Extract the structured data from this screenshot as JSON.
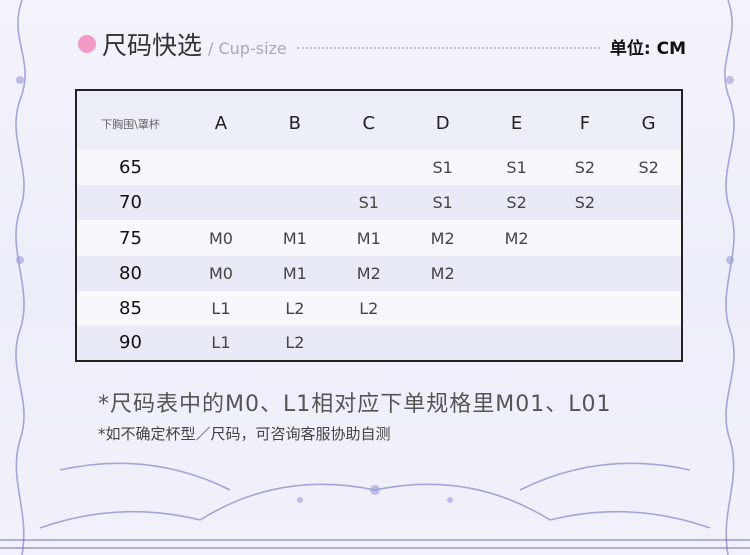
{
  "header": {
    "title": "尺码快选",
    "subtitle": "/ Cup-size",
    "unit": "单位: CM",
    "accent": "#f49ac6"
  },
  "table": {
    "corner": "下胸围\\罩杯",
    "columns": [
      "A",
      "B",
      "C",
      "D",
      "E",
      "F",
      "G"
    ],
    "rows": [
      {
        "band": "65",
        "cells": [
          "",
          "",
          "",
          "S1",
          "S1",
          "S2",
          "S2"
        ]
      },
      {
        "band": "70",
        "cells": [
          "",
          "",
          "S1",
          "S1",
          "S2",
          "S2",
          ""
        ]
      },
      {
        "band": "75",
        "cells": [
          "M0",
          "M1",
          "M1",
          "M2",
          "M2",
          "",
          ""
        ]
      },
      {
        "band": "80",
        "cells": [
          "M0",
          "M1",
          "M2",
          "M2",
          "",
          "",
          ""
        ]
      },
      {
        "band": "85",
        "cells": [
          "L1",
          "L2",
          "L2",
          "",
          "",
          "",
          ""
        ]
      },
      {
        "band": "90",
        "cells": [
          "L1",
          "L2",
          "",
          "",
          "",
          "",
          ""
        ]
      }
    ]
  },
  "notes": [
    "*尺码表中的M0、L1相对应下单规格里M01、L01",
    "*如不确定杯型／尺码，可咨询客服协助自测"
  ],
  "decor": {
    "frame_color": "#7e7fc8"
  }
}
